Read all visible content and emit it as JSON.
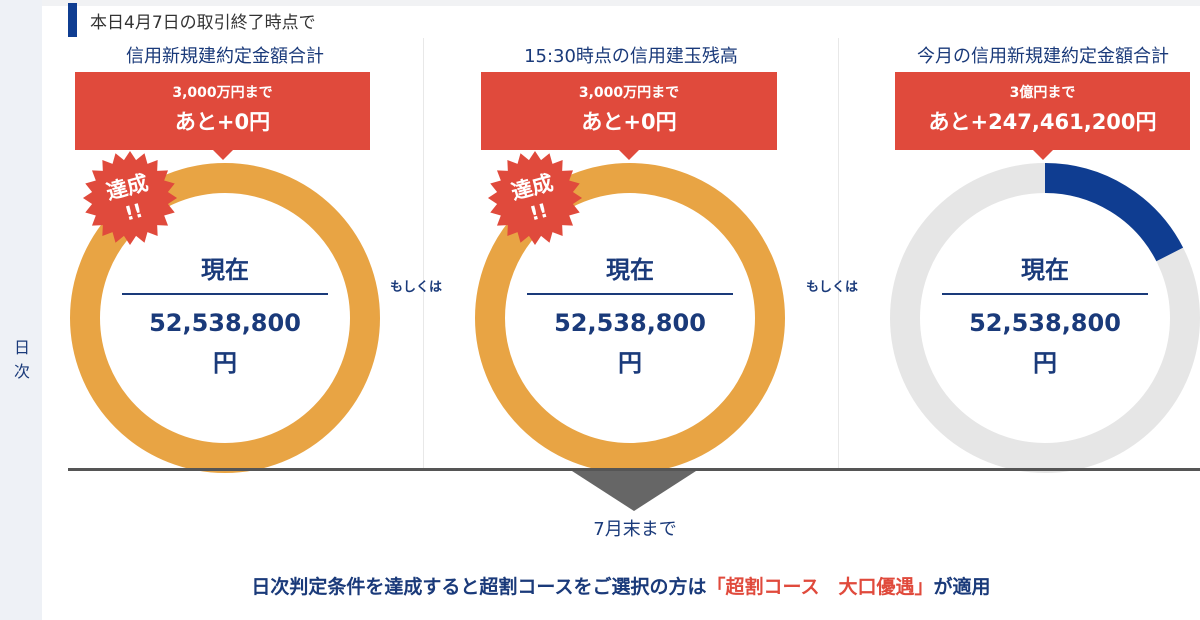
{
  "side_label": "日次",
  "header": "本日4月7日の取引終了時点で",
  "columns": [
    {
      "title": "信用新規建約定金額合計",
      "target": "3,000万円まで",
      "remaining": "あと+0円",
      "badge": "達成",
      "badge_sub": "!!",
      "now_label": "現在",
      "amount": "52,538,800",
      "unit": "円",
      "progress": 1.0
    },
    {
      "title": "15:30時点の信用建玉残高",
      "target": "3,000万円まで",
      "remaining": "あと+0円",
      "badge": "達成",
      "badge_sub": "!!",
      "now_label": "現在",
      "amount": "52,538,800",
      "unit": "円",
      "progress": 1.0
    },
    {
      "title": "今月の信用新規建約定金額合計",
      "target": "3億円まで",
      "remaining": "あと+247,461,200円",
      "now_label": "現在",
      "amount": "52,538,800",
      "unit": "円",
      "progress": 0.175
    }
  ],
  "or_label": "もしくは",
  "until": "7月末まで",
  "bottom": {
    "pre": "日次判定条件を達成すると超割コースをご選択の方は",
    "highlight": "「超割コース　大口優遇」",
    "post": "が適用"
  },
  "colors": {
    "achieved": "#e8a444",
    "progress": "#0f3d91",
    "track": "#e6e6e6",
    "red": "#e04a3c",
    "navy": "#1a3a7a"
  }
}
